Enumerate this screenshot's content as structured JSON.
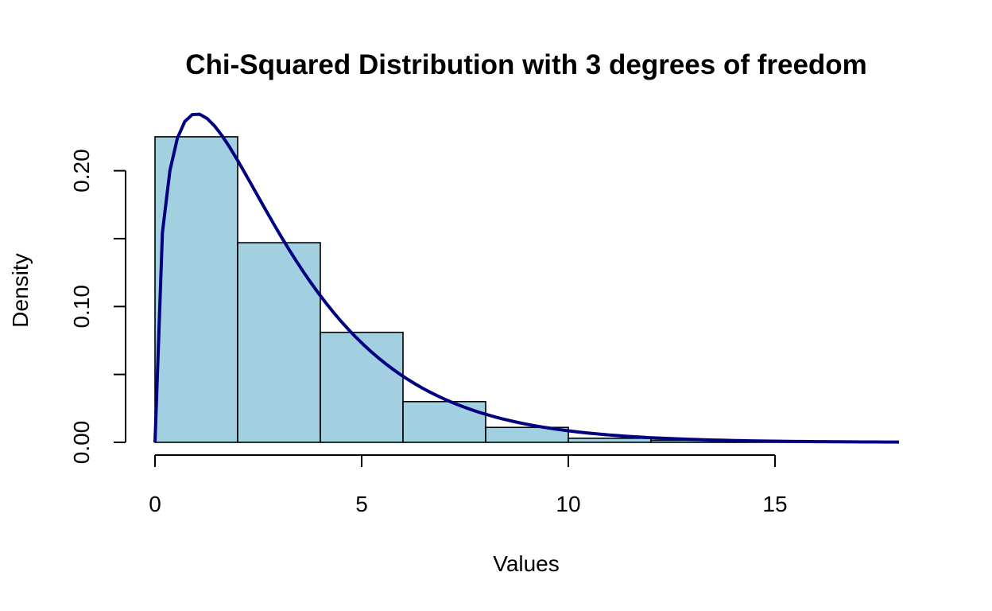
{
  "chart_data": {
    "type": "bar",
    "title": "Chi-Squared Distribution with 3 degrees of freedom",
    "xlabel": "Values",
    "ylabel": "Density",
    "xlim": [
      0,
      18
    ],
    "ylim": [
      0,
      0.225
    ],
    "x_ticks": [
      0,
      5,
      10,
      15
    ],
    "x_tick_labels": [
      "0",
      "5",
      "10",
      "15"
    ],
    "y_ticks": [
      0,
      0.05,
      0.1,
      0.15,
      0.2
    ],
    "y_tick_labels": [
      "0.00",
      "",
      "0.10",
      "",
      "0.20"
    ],
    "bins": [
      {
        "from": 0,
        "to": 2,
        "density": 0.225
      },
      {
        "from": 2,
        "to": 4,
        "density": 0.147
      },
      {
        "from": 4,
        "to": 6,
        "density": 0.081
      },
      {
        "from": 6,
        "to": 8,
        "density": 0.03
      },
      {
        "from": 8,
        "to": 10,
        "density": 0.011
      },
      {
        "from": 10,
        "to": 12,
        "density": 0.003
      },
      {
        "from": 12,
        "to": 14,
        "density": 0.0015
      },
      {
        "from": 14,
        "to": 16,
        "density": 0.0008
      }
    ],
    "curve": {
      "type": "line",
      "description_function": "chi-squared density, df = 3",
      "df": 3,
      "x_range": [
        0,
        18
      ]
    },
    "colors": {
      "bar_fill": "#a2d0e1",
      "bar_stroke": "#000000",
      "curve": "#000080"
    },
    "grid": false,
    "legend": "none"
  }
}
